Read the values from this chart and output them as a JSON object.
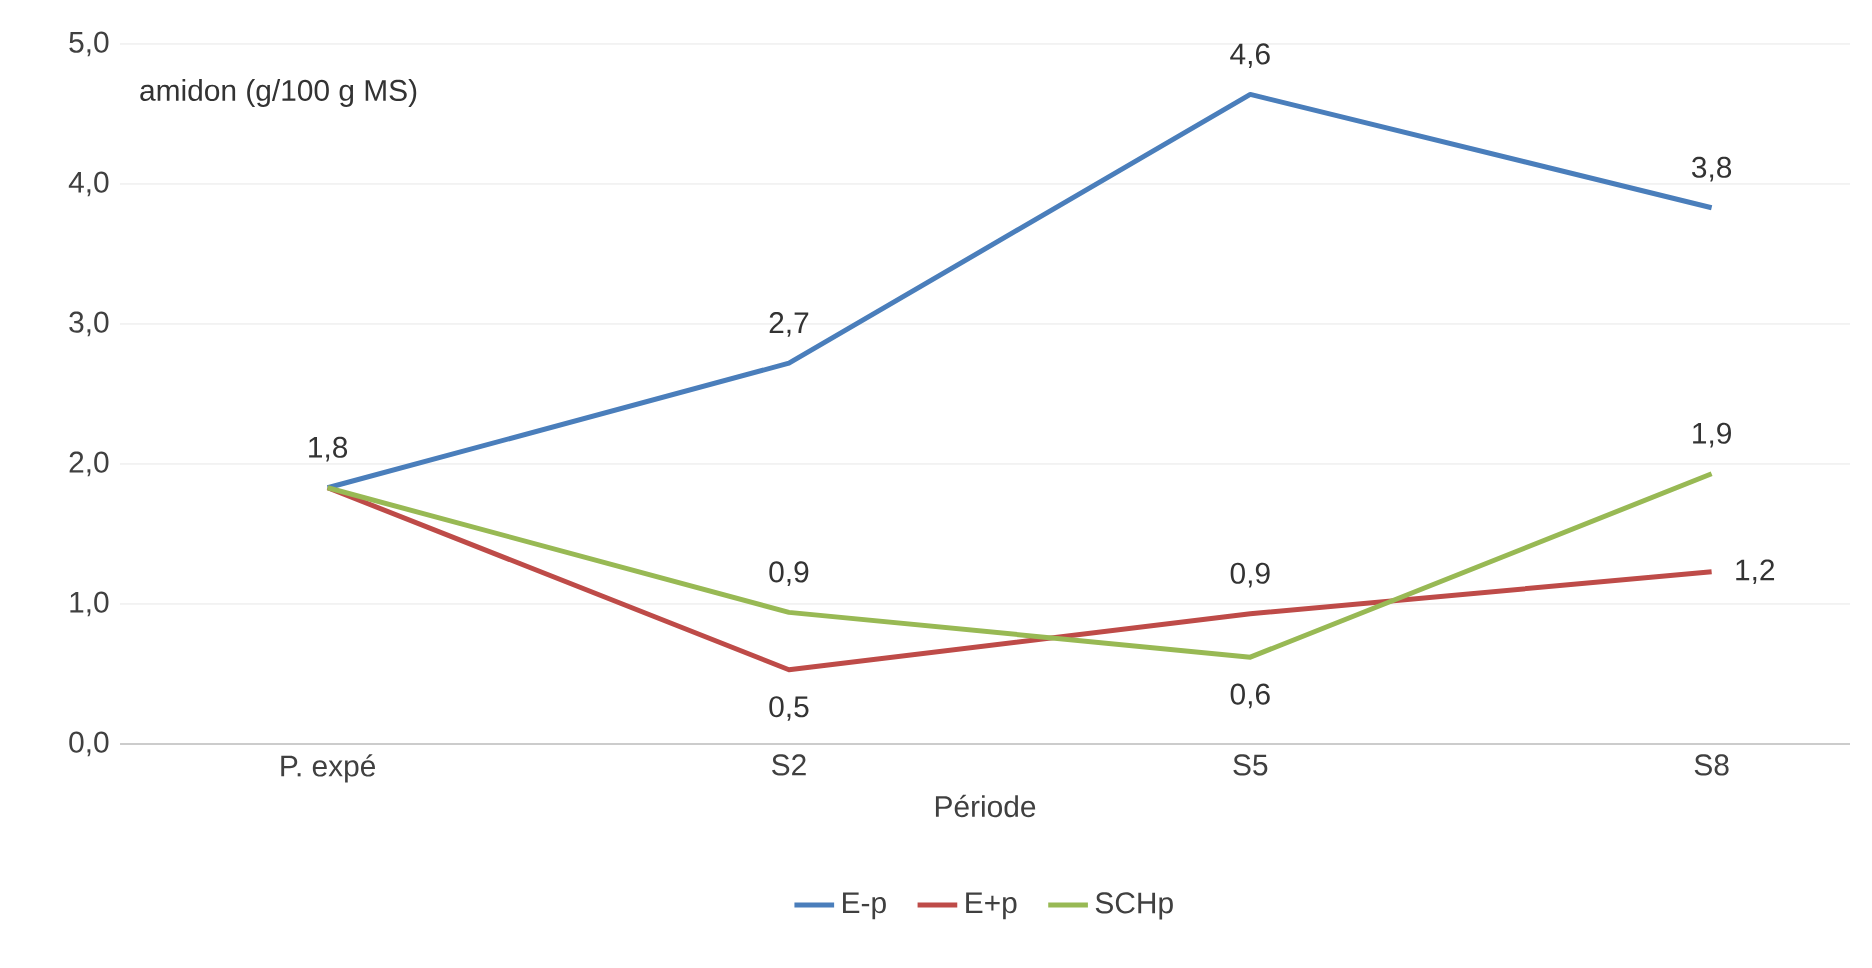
{
  "chart_data": {
    "type": "line",
    "xlabel": "Période",
    "annotations": [
      "amidon (g/100 g MS)"
    ],
    "categories": [
      "P. expé",
      "S2",
      "S5",
      "S8"
    ],
    "series": [
      {
        "name": "E-p",
        "color": "#4a7ebb",
        "values": [
          1.83,
          2.72,
          4.64,
          3.83
        ],
        "value_labels": [
          "1,8",
          "2,7",
          "4,6",
          "3,8"
        ]
      },
      {
        "name": "E+p",
        "color": "#be4b48",
        "values": [
          1.83,
          0.53,
          0.93,
          1.23
        ],
        "value_labels": [
          null,
          "0,5",
          "0,9",
          "1,2"
        ]
      },
      {
        "name": "SCHp",
        "color": "#98b954",
        "values": [
          1.83,
          0.94,
          0.62,
          1.93
        ],
        "value_labels": [
          null,
          "0,9",
          "0,6",
          "1,9"
        ]
      }
    ],
    "ylim": [
      0,
      5
    ],
    "yticks": [
      {
        "value": 0,
        "label": "0,0"
      },
      {
        "value": 1,
        "label": "1,0"
      },
      {
        "value": 2,
        "label": "2,0"
      },
      {
        "value": 3,
        "label": "3,0"
      },
      {
        "value": 4,
        "label": "4,0"
      },
      {
        "value": 5,
        "label": "5,0"
      }
    ],
    "grid": "y",
    "legend": "bottom",
    "marker": "none",
    "line_style": "solid"
  }
}
